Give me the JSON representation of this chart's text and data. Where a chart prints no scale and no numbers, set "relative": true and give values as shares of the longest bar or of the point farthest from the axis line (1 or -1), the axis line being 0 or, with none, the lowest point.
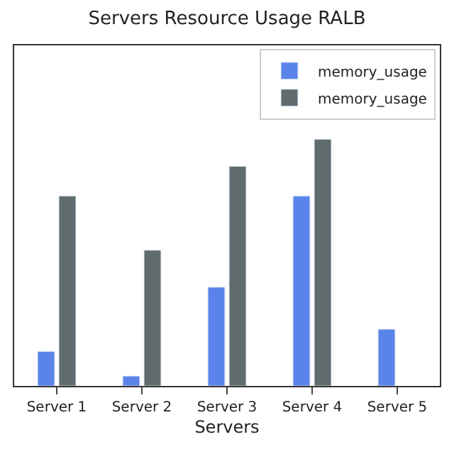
{
  "chart_data": {
    "type": "bar",
    "title": "Servers Resource Usage RALB",
    "xlabel": "Servers",
    "relative": true,
    "categories": [
      "Server 1",
      "Server 2",
      "Server 3",
      "Server 4",
      "Server 5"
    ],
    "series": [
      {
        "name": "memory_usage",
        "color": "#5b84ea",
        "values": [
          0.14,
          0.04,
          0.4,
          0.77,
          0.23
        ]
      },
      {
        "name": "memory_usage",
        "color": "#5f6b6d",
        "values": [
          0.77,
          0.55,
          0.89,
          1.0,
          null
        ]
      }
    ],
    "legend": "top right"
  }
}
